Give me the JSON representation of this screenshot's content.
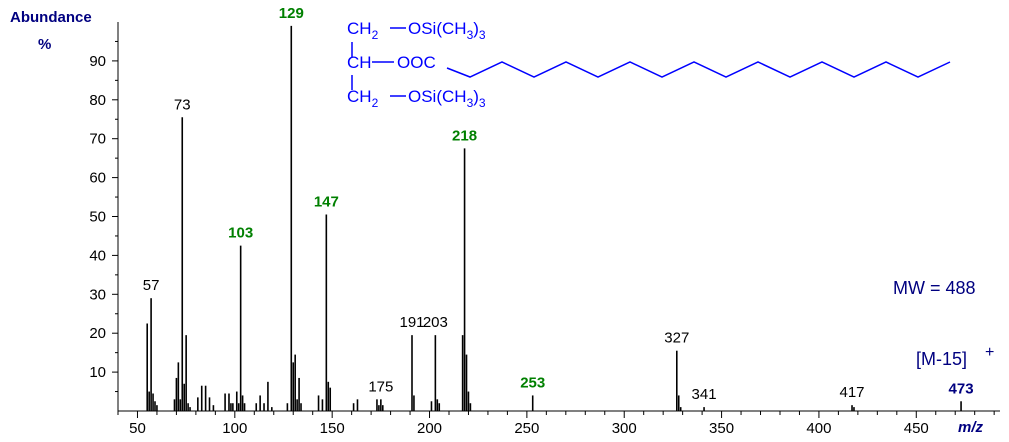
{
  "chart_data": {
    "type": "stick",
    "y_label_lines": [
      "Abundance",
      "%"
    ],
    "x_label": "m/z",
    "annotations": {
      "mw": "MW = 488",
      "ion": "[M-15]",
      "ion_charge": "+"
    },
    "structure": {
      "rows": [
        {
          "left": [
            {
              "text": "CH"
            },
            {
              "text": "2",
              "sub": true
            }
          ],
          "right": [
            {
              "text": "OSi(CH"
            },
            {
              "text": "3",
              "sub": true
            },
            {
              "text": ")"
            },
            {
              "text": "3",
              "sub": true
            }
          ]
        },
        {
          "left": [
            {
              "text": "CH"
            }
          ],
          "right": [
            {
              "text": "OOC"
            }
          ]
        },
        {
          "left": [
            {
              "text": "CH"
            },
            {
              "text": "2",
              "sub": true
            }
          ],
          "right": [
            {
              "text": "OSi(CH"
            },
            {
              "text": "3",
              "sub": true
            },
            {
              "text": ")"
            },
            {
              "text": "3",
              "sub": true
            }
          ]
        }
      ],
      "color": "#0000ff"
    },
    "color": "#000000",
    "x": [
      55,
      56,
      57,
      58,
      59,
      60,
      69,
      70,
      71,
      72,
      73,
      74,
      75,
      76,
      77,
      81,
      83,
      85,
      87,
      89,
      95,
      97,
      98,
      99,
      101,
      102,
      103,
      104,
      105,
      111,
      113,
      115,
      117,
      119,
      127,
      129,
      130,
      131,
      132,
      133,
      134,
      143,
      145,
      147,
      148,
      149,
      161,
      163,
      173,
      174,
      175,
      176,
      191,
      192,
      201,
      203,
      204,
      205,
      217,
      218,
      219,
      220,
      221,
      253,
      327,
      328,
      329,
      341,
      417,
      418,
      473
    ],
    "values": [
      22.5,
      5,
      29,
      4.5,
      2.5,
      1.5,
      3,
      8.5,
      12.5,
      3,
      75.5,
      7,
      19.5,
      2,
      1,
      3.5,
      6.5,
      6.5,
      3.5,
      1.5,
      4.5,
      4.5,
      2,
      2,
      5,
      2,
      42.5,
      4,
      2,
      2,
      4,
      2,
      7.5,
      1,
      2,
      99,
      12.5,
      14.5,
      3,
      8.5,
      2,
      4,
      3,
      50.5,
      7.5,
      6,
      2,
      3,
      3,
      1.5,
      3,
      1.5,
      19.5,
      4,
      2.5,
      19.5,
      3,
      2,
      19.5,
      67.5,
      14.5,
      5,
      2,
      4,
      15.5,
      4,
      1,
      1,
      1.5,
      1,
      2.5
    ],
    "label_styles": [
      null,
      null,
      "normal",
      null,
      null,
      null,
      null,
      null,
      null,
      null,
      "normal",
      null,
      null,
      null,
      null,
      null,
      null,
      null,
      null,
      null,
      null,
      null,
      null,
      null,
      null,
      null,
      "key",
      null,
      null,
      null,
      null,
      null,
      null,
      null,
      null,
      "key",
      null,
      null,
      null,
      null,
      null,
      null,
      null,
      "key",
      null,
      null,
      null,
      null,
      null,
      null,
      "normal",
      null,
      "normal",
      null,
      null,
      "normal",
      null,
      null,
      null,
      "key",
      null,
      null,
      null,
      "key",
      "normal",
      null,
      null,
      "normal",
      "normal",
      null,
      "parent"
    ],
    "label_style_colors": {
      "normal": "#000000",
      "key": "#008000",
      "parent": "#000080"
    },
    "xlim": [
      40,
      493
    ],
    "ylim": [
      0,
      100
    ],
    "xticks": [
      50,
      100,
      150,
      200,
      250,
      300,
      350,
      400,
      450
    ],
    "yticks": [
      10,
      20,
      30,
      40,
      50,
      60,
      70,
      80,
      90
    ],
    "xminor_ticks": [
      40,
      60,
      70,
      80,
      90,
      110,
      120,
      130,
      140,
      160,
      170,
      180,
      190,
      210,
      220,
      230,
      240,
      260,
      270,
      280,
      290,
      310,
      320,
      330,
      340,
      360,
      370,
      380,
      390,
      410,
      420,
      430,
      440,
      460,
      470,
      480,
      490
    ],
    "yminor_ticks": [
      5,
      15,
      25,
      35,
      45,
      55,
      65,
      75,
      85,
      95
    ]
  }
}
